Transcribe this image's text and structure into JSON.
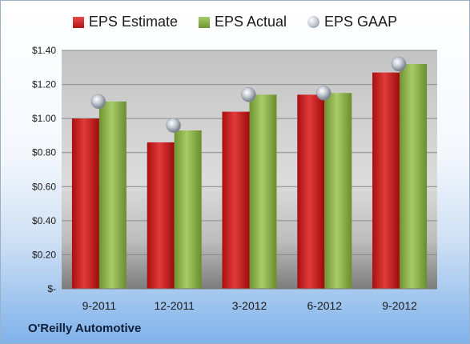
{
  "chart_data": {
    "type": "bar",
    "categories": [
      "9-2011",
      "12-2011",
      "3-2012",
      "6-2012",
      "9-2012"
    ],
    "series": [
      {
        "name": "EPS Estimate",
        "type": "bar",
        "color": "#c41e1e",
        "values": [
          1.0,
          0.86,
          1.04,
          1.14,
          1.27
        ]
      },
      {
        "name": "EPS Actual",
        "type": "bar",
        "color": "#8db04a",
        "values": [
          1.1,
          0.93,
          1.14,
          1.15,
          1.32
        ]
      },
      {
        "name": "EPS GAAP",
        "type": "marker",
        "color": "#b8bec7",
        "values": [
          1.1,
          0.96,
          1.14,
          1.15,
          1.32
        ]
      }
    ],
    "ylim": [
      0,
      1.4
    ],
    "yticks": [
      0,
      0.2,
      0.4,
      0.6,
      0.8,
      1.0,
      1.2,
      1.4
    ],
    "ytick_labels": [
      "$-",
      "$0.20",
      "$0.40",
      "$0.60",
      "$0.80",
      "$1.00",
      "$1.20",
      "$1.40"
    ],
    "grid": true,
    "legend_position": "top-center"
  },
  "footer": {
    "company": "O'Reilly Automotive"
  }
}
